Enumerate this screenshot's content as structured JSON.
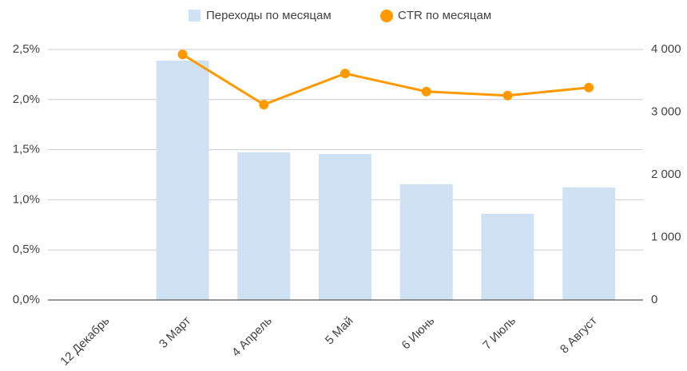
{
  "chart_data": {
    "type": "combo",
    "categories": [
      "12 Декабрь",
      "3 Март",
      "4 Апрель",
      "5 Май",
      "6 Июнь",
      "7 Июль",
      "8 Август"
    ],
    "series": [
      {
        "name": "Переходы по месяцам",
        "type": "bar",
        "axis": "y2",
        "color": "#cfe2f3",
        "values": [
          0,
          3822,
          2357,
          2331,
          1847,
          1376,
          1796
        ]
      },
      {
        "name": "CTR по месяцам",
        "type": "line",
        "axis": "y",
        "color": "#ff9900",
        "values": [
          null,
          2.45,
          1.95,
          2.26,
          2.08,
          2.04,
          2.12
        ]
      }
    ],
    "ylim": [
      0,
      2.5
    ],
    "yticks": [
      {
        "value": 0,
        "label": "0,0%"
      },
      {
        "value": 0.5,
        "label": "0,5%"
      },
      {
        "value": 1,
        "label": "1,0%"
      },
      {
        "value": 1.5,
        "label": "1,5%"
      },
      {
        "value": 2,
        "label": "2,0%"
      },
      {
        "value": 2.5,
        "label": "2,5%"
      }
    ],
    "y2lim": [
      0,
      4000
    ],
    "y2ticks": [
      0,
      {
        "value": 1000,
        "label": "1 000"
      },
      {
        "value": 2000,
        "label": "2 000"
      },
      {
        "value": 3000,
        "label": "3 000"
      },
      {
        "value": 4000,
        "label": "4 000"
      }
    ],
    "grid": true,
    "legend": "top"
  }
}
